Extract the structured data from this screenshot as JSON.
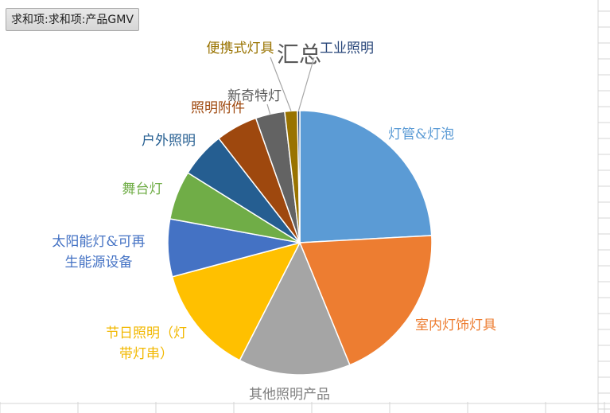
{
  "pivot_field_button": "求和项:求和项:产品GMV",
  "chart_data": {
    "type": "pie",
    "title": "汇总",
    "start_angle_deg": 0,
    "direction": "clockwise",
    "categories": [
      "灯管&灯泡",
      "室内灯饰灯具",
      "其他照明产品",
      "节日照明（灯带灯串）",
      "太阳能灯&可再生能源设备",
      "舞台灯",
      "户外照明",
      "照明附件",
      "新奇特灯",
      "便携式灯具",
      "工业照明"
    ],
    "label_lines": [
      [
        "灯管&灯泡"
      ],
      [
        "室内灯饰灯具"
      ],
      [
        "其他照明产品"
      ],
      [
        "节日照明（灯",
        "带灯串）"
      ],
      [
        "太阳能灯&可再",
        "生能源设备"
      ],
      [
        "舞台灯"
      ],
      [
        "户外照明"
      ],
      [
        "照明附件"
      ],
      [
        "新奇特灯"
      ],
      [
        "便携式灯具"
      ],
      [
        "工业照明"
      ]
    ],
    "values": [
      25.0,
      20.4,
      14.2,
      13.8,
      7.3,
      6.2,
      5.8,
      5.3,
      3.7,
      1.6,
      0.3
    ],
    "colors": [
      "#5B9BD5",
      "#ED7D31",
      "#A5A5A5",
      "#FFC000",
      "#4472C4",
      "#70AD47",
      "#255E91",
      "#9E480E",
      "#636363",
      "#997300",
      "#264478"
    ],
    "label_colors": [
      "#5B9BD5",
      "#ED7D31",
      "#7F7F7F",
      "#F2B800",
      "#4472C4",
      "#70AD47",
      "#255E91",
      "#9E480E",
      "#595959",
      "#997300",
      "#264478"
    ],
    "legend": "none"
  }
}
